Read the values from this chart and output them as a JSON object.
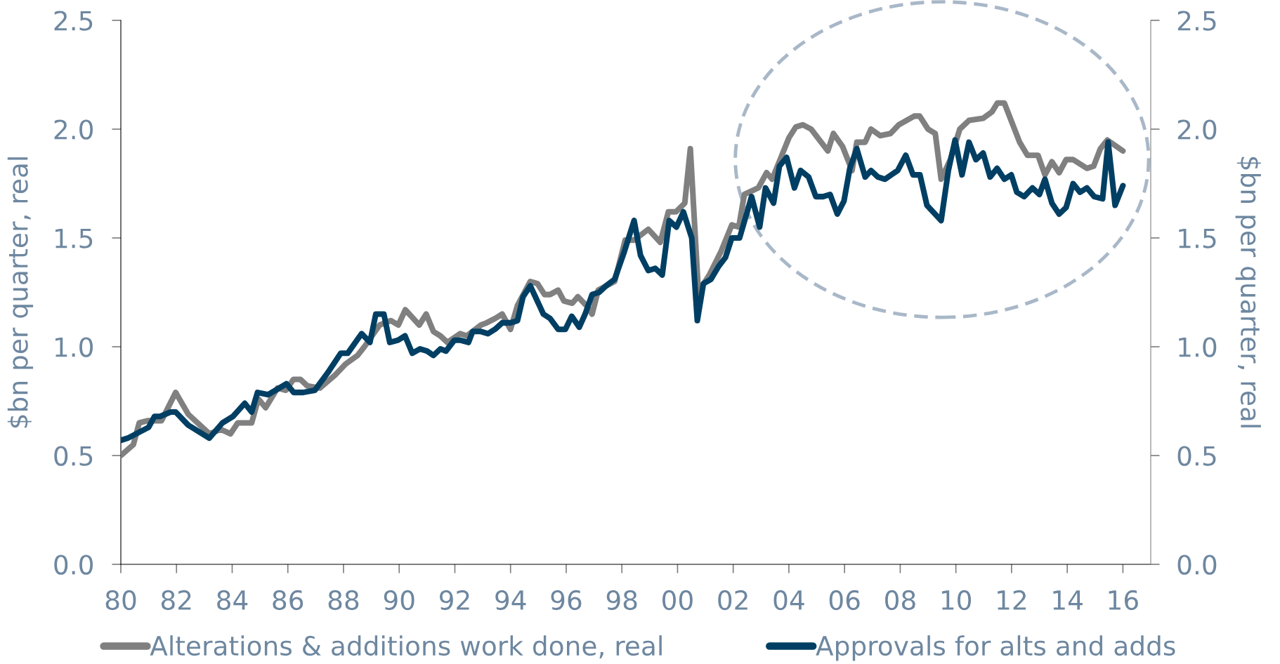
{
  "chart_data": {
    "type": "line",
    "xlim": [
      1980,
      2017
    ],
    "xticks": [
      {
        "value": 1980,
        "label": "80"
      },
      {
        "value": 1982,
        "label": "82"
      },
      {
        "value": 1984,
        "label": "84"
      },
      {
        "value": 1986,
        "label": "86"
      },
      {
        "value": 1988,
        "label": "88"
      },
      {
        "value": 1990,
        "label": "90"
      },
      {
        "value": 1992,
        "label": "92"
      },
      {
        "value": 1994,
        "label": "94"
      },
      {
        "value": 1996,
        "label": "96"
      },
      {
        "value": 1998,
        "label": "98"
      },
      {
        "value": 2000,
        "label": "00"
      },
      {
        "value": 2002,
        "label": "02"
      },
      {
        "value": 2004,
        "label": "04"
      },
      {
        "value": 2006,
        "label": "06"
      },
      {
        "value": 2008,
        "label": "08"
      },
      {
        "value": 2010,
        "label": "10"
      },
      {
        "value": 2012,
        "label": "12"
      },
      {
        "value": 2014,
        "label": "14"
      },
      {
        "value": 2016,
        "label": "16"
      }
    ],
    "ylim": [
      0,
      2.5
    ],
    "yticks": [
      {
        "value": 0,
        "label": "0.0"
      },
      0.5,
      {
        "value": 1,
        "label": "1.0"
      },
      1.5,
      {
        "value": 2,
        "label": "2.0"
      },
      2.5
    ],
    "y2lim": [
      0,
      2.5
    ],
    "y2ticks": [
      {
        "value": 0,
        "label": "0.0"
      },
      0.5,
      {
        "value": 1,
        "label": "1.0"
      },
      1.5,
      {
        "value": 2,
        "label": "2.0"
      },
      2.5
    ],
    "ylabel": "$bn per quarter, real",
    "y2label": "$bn per quarter, real",
    "legend": "bottom",
    "grid": false,
    "line_style": "solid",
    "series": [
      {
        "name": "Alterations & additions work done, real",
        "color": "#808080",
        "x": [
          1980.0,
          1980.45,
          1980.66,
          1980.96,
          1981.46,
          1981.97,
          1982.42,
          1983.18,
          1983.6,
          1983.94,
          1984.2,
          1984.7,
          1984.94,
          1985.2,
          1985.63,
          1985.93,
          1986.2,
          1986.45,
          1986.7,
          1987.15,
          1987.7,
          1988.07,
          1988.5,
          1988.75,
          1989.3,
          1989.7,
          1989.97,
          1990.22,
          1990.72,
          1990.97,
          1991.23,
          1991.48,
          1991.73,
          1992.19,
          1992.43,
          1992.94,
          1993.14,
          1993.45,
          1993.7,
          1994.0,
          1994.25,
          1994.71,
          1994.97,
          1995.22,
          1995.42,
          1995.71,
          1995.92,
          1996.22,
          1996.42,
          1996.72,
          1996.93,
          1997.15,
          1997.74,
          1998.12,
          1998.44,
          1998.95,
          1999.38,
          1999.67,
          1999.94,
          2000.26,
          2000.46,
          2000.75,
          2001.14,
          2001.57,
          2001.95,
          2002.2,
          2002.4,
          2002.9,
          2003.2,
          2003.4,
          2004.0,
          2004.25,
          2004.5,
          2004.8,
          2005.1,
          2005.4,
          2005.6,
          2005.93,
          2006.27,
          2006.44,
          2006.74,
          2006.95,
          2007.28,
          2007.65,
          2007.95,
          2008.5,
          2008.7,
          2009.0,
          2009.26,
          2009.47,
          2009.8,
          2010.14,
          2010.47,
          2010.98,
          2011.3,
          2011.49,
          2011.74,
          2012.29,
          2012.57,
          2012.95,
          2013.2,
          2013.45,
          2013.71,
          2013.96,
          2014.21,
          2014.71,
          2014.95,
          2015.19,
          2015.44,
          2016.0
        ],
        "values": [
          0.5,
          0.55,
          0.65,
          0.66,
          0.66,
          0.79,
          0.69,
          0.6,
          0.62,
          0.6,
          0.65,
          0.65,
          0.76,
          0.72,
          0.81,
          0.8,
          0.85,
          0.85,
          0.82,
          0.81,
          0.87,
          0.92,
          0.96,
          1.0,
          1.1,
          1.12,
          1.1,
          1.17,
          1.1,
          1.15,
          1.07,
          1.05,
          1.02,
          1.06,
          1.05,
          1.1,
          1.11,
          1.13,
          1.15,
          1.08,
          1.19,
          1.3,
          1.29,
          1.24,
          1.24,
          1.26,
          1.21,
          1.2,
          1.23,
          1.19,
          1.15,
          1.26,
          1.3,
          1.49,
          1.49,
          1.54,
          1.48,
          1.62,
          1.62,
          1.66,
          1.91,
          1.25,
          1.33,
          1.44,
          1.56,
          1.55,
          1.7,
          1.73,
          1.8,
          1.77,
          1.96,
          2.01,
          2.02,
          2.0,
          1.95,
          1.9,
          1.98,
          1.92,
          1.81,
          1.94,
          1.94,
          2.0,
          1.97,
          1.98,
          2.02,
          2.06,
          2.06,
          2.0,
          1.98,
          1.77,
          1.86,
          2.0,
          2.04,
          2.05,
          2.08,
          2.12,
          2.12,
          1.94,
          1.88,
          1.88,
          1.79,
          1.85,
          1.8,
          1.86,
          1.86,
          1.82,
          1.83,
          1.91,
          1.95,
          1.9
        ]
      },
      {
        "name": "Approvals for alts and adds",
        "color": "#003f63",
        "x": [
          1980.0,
          1980.25,
          1981.0,
          1981.21,
          1981.41,
          1981.79,
          1981.97,
          1982.42,
          1983.18,
          1983.65,
          1984.03,
          1984.45,
          1984.7,
          1984.91,
          1985.29,
          1985.95,
          1986.21,
          1986.55,
          1986.97,
          1987.43,
          1987.9,
          1988.15,
          1988.65,
          1988.95,
          1989.16,
          1989.45,
          1989.66,
          1989.96,
          1990.21,
          1990.47,
          1990.75,
          1991.0,
          1991.23,
          1991.48,
          1991.68,
          1991.98,
          1992.19,
          1992.49,
          1992.64,
          1992.94,
          1993.19,
          1993.44,
          1993.7,
          1994.0,
          1994.25,
          1994.45,
          1994.71,
          1995.18,
          1995.42,
          1995.71,
          1995.97,
          1996.2,
          1996.47,
          1996.68,
          1996.93,
          1997.18,
          1997.43,
          1997.74,
          1998.07,
          1998.44,
          1998.67,
          1998.95,
          1999.2,
          1999.45,
          1999.7,
          1999.96,
          2000.21,
          2000.51,
          2000.71,
          2000.93,
          2001.2,
          2001.48,
          2001.72,
          2001.95,
          2002.23,
          2002.66,
          2002.95,
          2003.16,
          2003.45,
          2003.66,
          2003.92,
          2004.2,
          2004.42,
          2004.71,
          2004.97,
          2005.23,
          2005.48,
          2005.74,
          2005.98,
          2006.19,
          2006.44,
          2006.74,
          2006.95,
          2007.2,
          2007.45,
          2007.91,
          2008.2,
          2008.46,
          2008.71,
          2008.96,
          2009.47,
          2009.73,
          2009.97,
          2010.22,
          2010.47,
          2010.72,
          2010.98,
          2011.23,
          2011.48,
          2011.74,
          2011.99,
          2012.19,
          2012.45,
          2012.75,
          2013.0,
          2013.2,
          2013.45,
          2013.71,
          2013.96,
          2014.21,
          2014.46,
          2014.71,
          2014.97,
          2015.27,
          2015.47,
          2015.72,
          2016.0
        ],
        "values": [
          0.57,
          0.58,
          0.63,
          0.68,
          0.68,
          0.7,
          0.7,
          0.64,
          0.58,
          0.65,
          0.68,
          0.74,
          0.7,
          0.79,
          0.78,
          0.83,
          0.79,
          0.79,
          0.8,
          0.88,
          0.97,
          0.97,
          1.06,
          1.02,
          1.15,
          1.15,
          1.02,
          1.03,
          1.05,
          0.97,
          0.99,
          0.98,
          0.96,
          0.99,
          0.98,
          1.03,
          1.03,
          1.02,
          1.07,
          1.07,
          1.06,
          1.08,
          1.11,
          1.11,
          1.12,
          1.23,
          1.28,
          1.15,
          1.13,
          1.08,
          1.08,
          1.14,
          1.09,
          1.15,
          1.24,
          1.25,
          1.28,
          1.31,
          1.43,
          1.58,
          1.42,
          1.35,
          1.36,
          1.33,
          1.58,
          1.55,
          1.62,
          1.5,
          1.12,
          1.29,
          1.31,
          1.37,
          1.41,
          1.5,
          1.5,
          1.69,
          1.55,
          1.73,
          1.66,
          1.83,
          1.87,
          1.73,
          1.81,
          1.78,
          1.69,
          1.69,
          1.7,
          1.61,
          1.67,
          1.82,
          1.91,
          1.78,
          1.81,
          1.78,
          1.77,
          1.81,
          1.88,
          1.79,
          1.79,
          1.65,
          1.58,
          1.81,
          1.95,
          1.79,
          1.94,
          1.86,
          1.89,
          1.78,
          1.82,
          1.77,
          1.79,
          1.71,
          1.69,
          1.73,
          1.7,
          1.77,
          1.66,
          1.61,
          1.64,
          1.75,
          1.71,
          1.73,
          1.69,
          1.68,
          1.94,
          1.65,
          1.74
        ]
      }
    ]
  }
}
